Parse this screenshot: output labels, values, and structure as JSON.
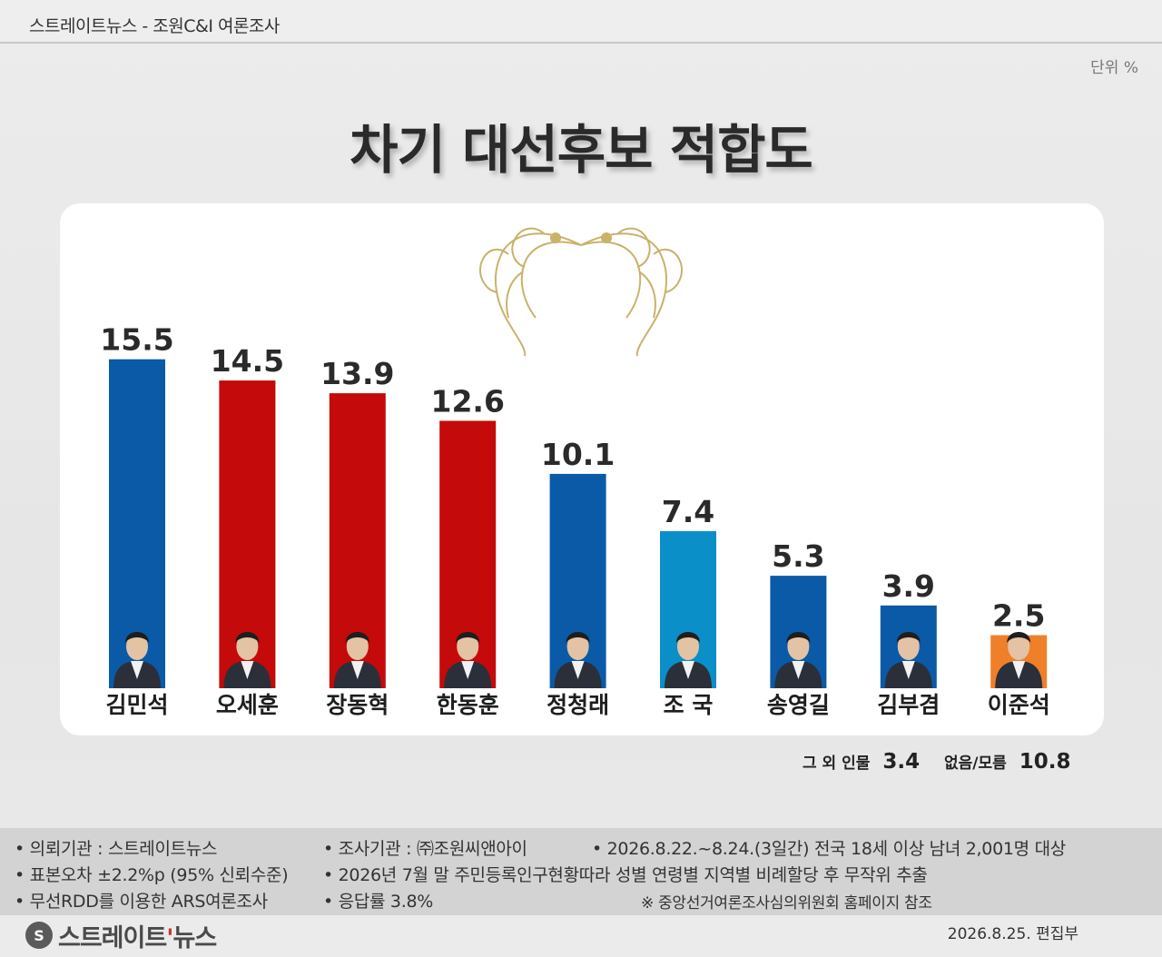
{
  "header": {
    "source": "스트레이트뉴스 - 조원C&I 여론조사",
    "unit": "단위 %"
  },
  "title": "차기 대선후보 적합도",
  "chart_data": {
    "type": "bar",
    "categories": [
      "김민석",
      "오세훈",
      "장동혁",
      "한동훈",
      "정청래",
      "조 국",
      "송영길",
      "김부겸",
      "이준석"
    ],
    "values": [
      15.5,
      14.5,
      13.9,
      12.6,
      10.1,
      7.4,
      5.3,
      3.9,
      2.5
    ],
    "value_labels": [
      "15.5",
      "14.5",
      "13.9",
      "12.6",
      "10.1",
      "7.4",
      "5.3",
      "3.9",
      "2.5"
    ],
    "colors": [
      "#0a5aa8",
      "#c40a0a",
      "#c40a0a",
      "#c40a0a",
      "#0a5aa8",
      "#0a8fc8",
      "#0a5aa8",
      "#0a5aa8",
      "#f07f2a"
    ],
    "ylim": [
      0,
      16
    ],
    "xlabel": "",
    "ylabel": "",
    "grid": false,
    "legend": "none"
  },
  "others": {
    "label": "그 외 인물",
    "value": "3.4"
  },
  "none": {
    "label": "없음/모름",
    "value": "10.8"
  },
  "notes": {
    "client": "• 의뢰기관 : 스트레이트뉴스",
    "agency": "• 조사기관 : ㈜조원씨앤아이",
    "period": "• 2026.8.22.~8.24.(3일간) 전국 18세 이상 남녀 2,001명 대상",
    "error": "• 표본오차 ±2.2%p (95% 신뢰수준)",
    "sampling": "• 2026년 7월 말 주민등록인구현황따라 성별 연령별 지역별 비례할당 후 무작위 추출",
    "method": "• 무선RDD를 이용한 ARS여론조사",
    "response": "• 응답률 3.8%",
    "reference": "※ 중앙선거여론조사심의위원회 홈페이지 참조"
  },
  "footer": {
    "logo_mark": "S",
    "logo_text_main": "스트레이트",
    "logo_text_accent": "'",
    "logo_text_tail": "뉴스",
    "date": "2026.8.25.  편집부"
  }
}
